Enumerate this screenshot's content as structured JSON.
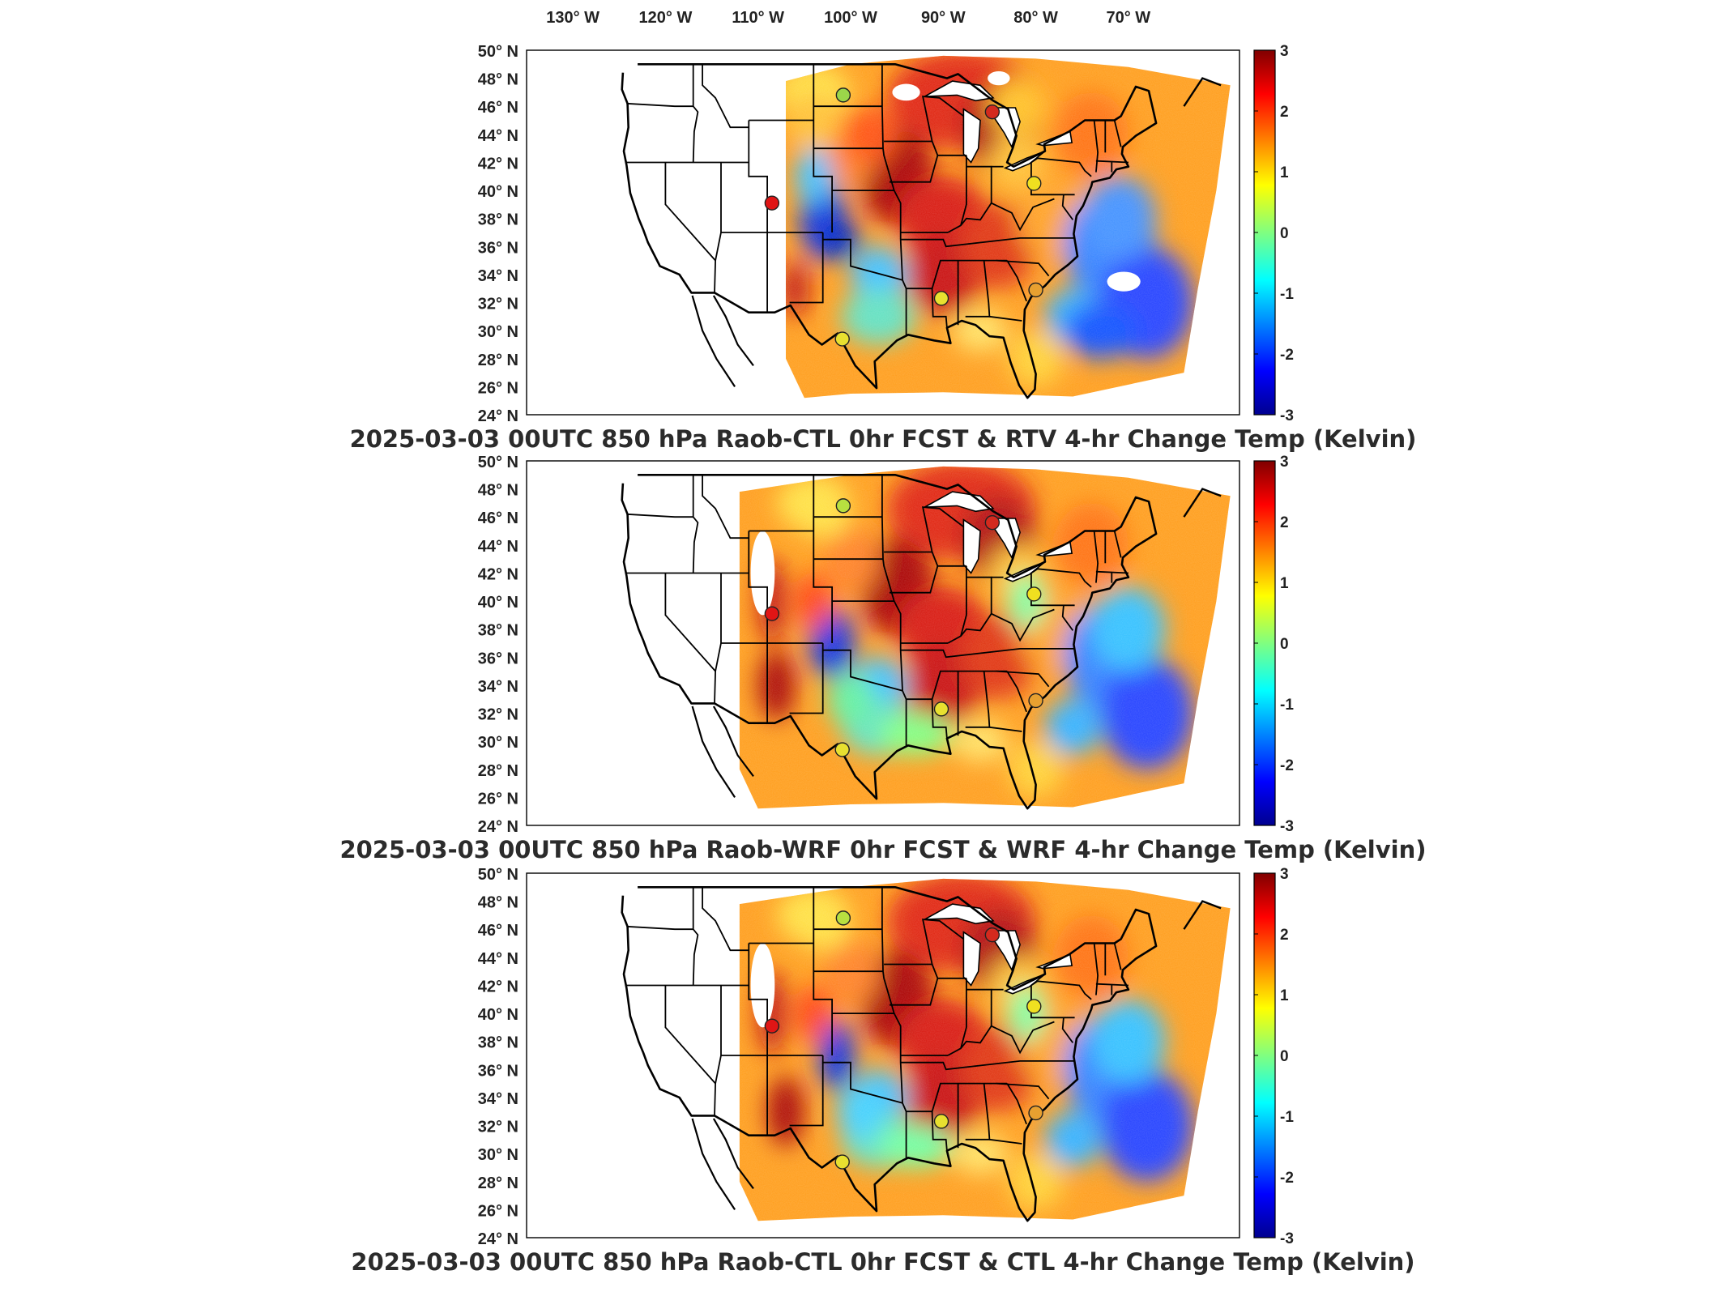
{
  "lon_labels": [
    "130",
    "120",
    "110",
    "100",
    "90",
    "80",
    "70"
  ],
  "lon_suffix": "W",
  "lat_labels": [
    "50",
    "48",
    "46",
    "44",
    "42",
    "40",
    "38",
    "36",
    "34",
    "32",
    "30",
    "28",
    "26",
    "24"
  ],
  "lat_suffix": "N",
  "degree_symbol": "°",
  "colorbar": {
    "ticks": [
      "3",
      "2",
      "1",
      "0",
      "-1",
      "-2",
      "-3"
    ],
    "range": [
      -3,
      3
    ],
    "colormap": "jet"
  },
  "panels": [
    {
      "title": "2025-03-03 00UTC 850 hPa Raob-CTL 0hr FCST & RTV 4-hr Change Temp (Kelvin)",
      "variant": "rtv",
      "station_markers": [
        {
          "lon": -100.8,
          "lat": 46.8,
          "color": "#9bd64a"
        },
        {
          "lon": -84.7,
          "lat": 45.6,
          "color": "#d42a1e"
        },
        {
          "lon": -108.5,
          "lat": 39.1,
          "color": "#e01515"
        },
        {
          "lon": -80.2,
          "lat": 40.5,
          "color": "#f0e020"
        },
        {
          "lon": -90.2,
          "lat": 32.3,
          "color": "#e8e030"
        },
        {
          "lon": -80.0,
          "lat": 32.9,
          "color": "#e8a030"
        },
        {
          "lon": -100.9,
          "lat": 29.4,
          "color": "#e8e030"
        }
      ]
    },
    {
      "title": "2025-03-03 00UTC 850 hPa Raob-WRF 0hr FCST & WRF 4-hr Change Temp (Kelvin)",
      "variant": "wrf",
      "station_markers": [
        {
          "lon": -100.8,
          "lat": 46.8,
          "color": "#b8e040"
        },
        {
          "lon": -84.7,
          "lat": 45.6,
          "color": "#d42a1e"
        },
        {
          "lon": -108.5,
          "lat": 39.1,
          "color": "#e01515"
        },
        {
          "lon": -80.2,
          "lat": 40.5,
          "color": "#f0e020"
        },
        {
          "lon": -90.2,
          "lat": 32.3,
          "color": "#e8e030"
        },
        {
          "lon": -80.0,
          "lat": 32.9,
          "color": "#e8a030"
        },
        {
          "lon": -100.9,
          "lat": 29.4,
          "color": "#e8e030"
        }
      ]
    },
    {
      "title": "2025-03-03 00UTC 850 hPa Raob-CTL 0hr FCST & CTL 4-hr Change Temp (Kelvin)",
      "variant": "ctl",
      "station_markers": [
        {
          "lon": -100.8,
          "lat": 46.8,
          "color": "#b8e040"
        },
        {
          "lon": -84.7,
          "lat": 45.6,
          "color": "#d42a1e"
        },
        {
          "lon": -108.5,
          "lat": 39.1,
          "color": "#e01515"
        },
        {
          "lon": -80.2,
          "lat": 40.5,
          "color": "#f0e020"
        },
        {
          "lon": -90.2,
          "lat": 32.3,
          "color": "#e8e030"
        },
        {
          "lon": -80.0,
          "lat": 32.9,
          "color": "#e8a030"
        },
        {
          "lon": -100.9,
          "lat": 29.4,
          "color": "#e8e030"
        }
      ]
    }
  ]
}
